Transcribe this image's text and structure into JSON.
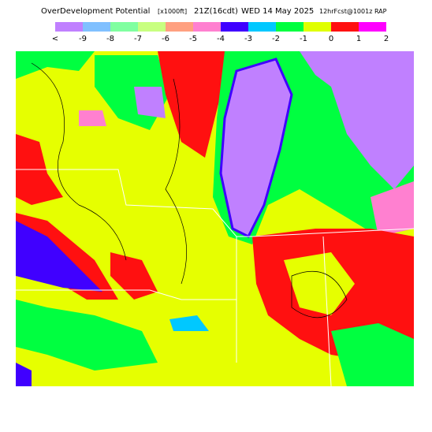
{
  "header": {
    "title": "OverDevelopment Potential",
    "units": "[x1000ft]",
    "valid": "21Z(16cdt)",
    "date": "WED 14 May 2025",
    "run": "12hrFcst@1001z RAP"
  },
  "legend": {
    "labels": [
      "<",
      "-9",
      "-8",
      "-7",
      "-6",
      "-5",
      "-4",
      "-3",
      "-2",
      "-1",
      "0",
      "1",
      "2"
    ],
    "colors": [
      "#c080ff",
      "#80c0ff",
      "#80ffa0",
      "#c8ff80",
      "#ffa080",
      "#ff80d0",
      "#4000ff",
      "#00c8ff",
      "#00ff40",
      "#e0ff00",
      "#ff1010",
      "#ff00ff"
    ]
  }
}
